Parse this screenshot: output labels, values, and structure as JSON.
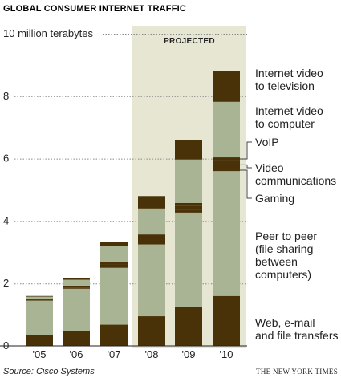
{
  "colors": {
    "dark": "#4a3208",
    "light": "#a8b494",
    "projected_band": "#e6e6d2",
    "grid": "#888888",
    "axis": "#222222",
    "text": "#222222"
  },
  "chart_data": {
    "type": "bar",
    "stacked": true,
    "title": "GLOBAL CONSUMER INTERNET TRAFFIC",
    "ylabel_top": "10 million terabytes",
    "ylim": [
      0,
      10
    ],
    "y_ticks": [
      {
        "value": 0,
        "label": "0"
      },
      {
        "value": 2,
        "label": "2"
      },
      {
        "value": 4,
        "label": "4"
      },
      {
        "value": 6,
        "label": "6"
      },
      {
        "value": 8,
        "label": "8"
      },
      {
        "value": 10,
        "label": "10 million terabytes"
      }
    ],
    "categories": [
      "'05",
      "'06",
      "'07",
      "'08",
      "'09",
      "'10"
    ],
    "projected_label": "PROJECTED",
    "projected_categories": [
      "'08",
      "'09",
      "'10"
    ],
    "grid": true,
    "series": [
      {
        "name": "Web, e-mail and file transfers",
        "color_key": "dark",
        "values": [
          0.35,
          0.48,
          0.68,
          0.95,
          1.25,
          1.6
        ]
      },
      {
        "name": "Peer to peer (file sharing between computers)",
        "color_key": "light",
        "values": [
          1.1,
          1.35,
          1.82,
          2.3,
          3.02,
          4.0
        ]
      },
      {
        "name": "Gaming",
        "color_key": "dark",
        "values": [
          0.03,
          0.04,
          0.06,
          0.09,
          0.09,
          0.06
        ]
      },
      {
        "name": "Video communications",
        "color_key": "dark",
        "values": [
          0.02,
          0.03,
          0.05,
          0.12,
          0.12,
          0.28
        ]
      },
      {
        "name": "VoIP",
        "color_key": "dark",
        "values": [
          0.02,
          0.03,
          0.07,
          0.11,
          0.1,
          0.1
        ]
      },
      {
        "name": "Internet video to computer",
        "color_key": "light",
        "values": [
          0.06,
          0.19,
          0.53,
          0.83,
          1.39,
          1.78
        ]
      },
      {
        "name": "Internet video to television",
        "color_key": "dark",
        "values": [
          0.02,
          0.05,
          0.11,
          0.4,
          0.63,
          0.98
        ]
      }
    ]
  },
  "legend": [
    {
      "series_index": 6,
      "lines": [
        "Internet video",
        "to television"
      ]
    },
    {
      "series_index": 5,
      "lines": [
        "Internet video",
        "to computer"
      ]
    },
    {
      "series_index": 4,
      "lines": [
        "VoIP"
      ]
    },
    {
      "series_index": 3,
      "lines": [
        "Video",
        "communications"
      ]
    },
    {
      "series_index": 2,
      "lines": [
        "Gaming"
      ]
    },
    {
      "series_index": 1,
      "lines": [
        "Peer to peer",
        "(file sharing",
        "between",
        "computers)"
      ]
    },
    {
      "series_index": 0,
      "lines": [
        "Web, e-mail",
        "and file transfers"
      ]
    }
  ],
  "footer": {
    "source": "Source: Cisco Systems",
    "credit": "THE NEW YORK TIMES"
  }
}
